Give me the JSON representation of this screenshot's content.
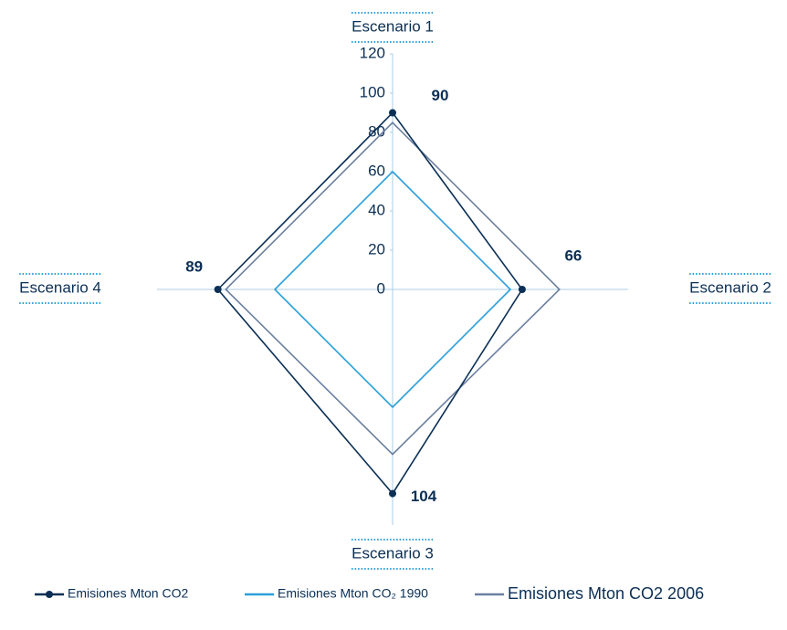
{
  "chart_data": {
    "type": "radar",
    "categories": [
      "Escenario 1",
      "Escenario 2",
      "Escenario 3",
      "Escenario 4"
    ],
    "series": [
      {
        "name": "Emisiones Mton CO2",
        "color": "#0b2f55",
        "values": [
          90,
          66,
          104,
          89
        ],
        "markers": true,
        "show_labels": true
      },
      {
        "name": "Emisiones Mton CO₂ 1990",
        "color": "#2a9fd8",
        "values": [
          60,
          60,
          60,
          60
        ]
      },
      {
        "name": "Emisiones Mton CO2 2006",
        "color": "#6b7fa0",
        "values": [
          85,
          85,
          84,
          85
        ]
      }
    ],
    "rlim": [
      0,
      120
    ],
    "rticks": [
      0,
      20,
      40,
      60,
      80,
      100,
      120
    ],
    "legend": "bottom"
  }
}
